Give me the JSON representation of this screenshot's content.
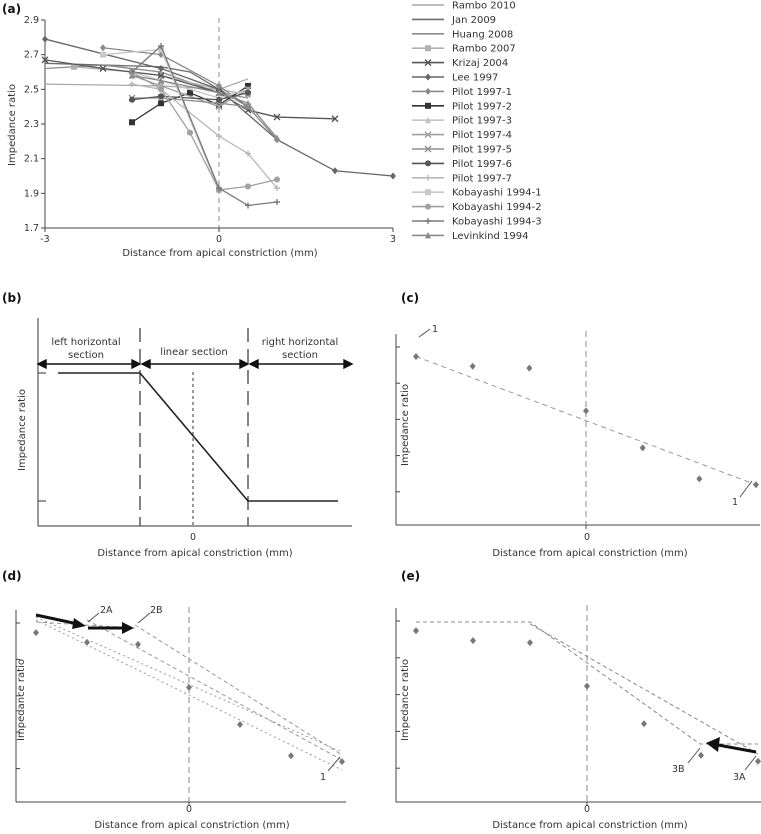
{
  "chart_data": [
    {
      "id": "a",
      "type": "line",
      "panel_label": "(a)",
      "xlabel": "Distance from apical constriction (mm)",
      "ylabel": "Impedance ratio",
      "xlim": [
        -3,
        3
      ],
      "ylim": [
        1.7,
        2.9
      ],
      "x_ticks": [
        -3,
        0,
        3
      ],
      "x_tick_labels": [
        "-3",
        "0",
        "3"
      ],
      "y_ticks": [
        1.7,
        1.9,
        2.1,
        2.3,
        2.5,
        2.7,
        2.9
      ],
      "y_tick_labels": [
        "1.7",
        "1.9",
        "2.1",
        "2.3",
        "2.5",
        "2.7",
        "2.9"
      ],
      "reference_line_x": 0,
      "legend_position": "right",
      "series": [
        {
          "name": "Rambo 2010",
          "color": "#a8a8a8",
          "marker": "none",
          "x": [
            -3,
            -1,
            0,
            0.5
          ],
          "y": [
            2.53,
            2.52,
            2.5,
            2.56
          ]
        },
        {
          "name": "Jan 2009",
          "color": "#6e6e6e",
          "marker": "none",
          "x": [
            -3,
            -1,
            -0.5,
            0,
            0.5
          ],
          "y": [
            2.65,
            2.63,
            2.6,
            2.5,
            2.4
          ]
        },
        {
          "name": "Huang 2008",
          "color": "#8c8c8c",
          "marker": "none",
          "x": [
            -3,
            -2,
            -1,
            0,
            0.5
          ],
          "y": [
            2.62,
            2.64,
            2.6,
            2.48,
            2.45
          ]
        },
        {
          "name": "Rambo 2007",
          "color": "#b0b0b0",
          "marker": "square",
          "x": [
            -2.5,
            -1.5,
            -1,
            0,
            0.5
          ],
          "y": [
            2.63,
            2.6,
            2.58,
            2.5,
            2.47
          ]
        },
        {
          "name": "Krizaj 2004",
          "color": "#555555",
          "marker": "x",
          "x": [
            -3,
            -2,
            -1,
            0,
            0.5,
            1,
            2
          ],
          "y": [
            2.67,
            2.62,
            2.58,
            2.48,
            2.38,
            2.34,
            2.33
          ]
        },
        {
          "name": "Lee 1997",
          "color": "#666666",
          "marker": "diamond",
          "x": [
            -3,
            -1,
            0,
            1,
            2,
            3
          ],
          "y": [
            2.79,
            2.62,
            2.5,
            2.21,
            2.03,
            2.0
          ]
        },
        {
          "name": "Pilot 1997-1",
          "color": "#8a8a8a",
          "marker": "diamond",
          "x": [
            -2,
            -1,
            0,
            0.5,
            1
          ],
          "y": [
            2.74,
            2.7,
            2.52,
            2.4,
            2.21
          ]
        },
        {
          "name": "Pilot 1997-2",
          "color": "#333333",
          "marker": "square",
          "x": [
            -1.5,
            -1,
            -0.5,
            0,
            0.5
          ],
          "y": [
            2.31,
            2.42,
            2.48,
            2.41,
            2.52
          ]
        },
        {
          "name": "Pilot 1997-3",
          "color": "#c4c4c4",
          "marker": "triangle",
          "x": [
            -1.5,
            -1,
            0,
            0.5
          ],
          "y": [
            2.6,
            2.55,
            2.45,
            2.5
          ]
        },
        {
          "name": "Pilot 1997-4",
          "color": "#a0a0a0",
          "marker": "x",
          "x": [
            -1.5,
            -1,
            0,
            0.5
          ],
          "y": [
            2.58,
            2.52,
            2.4,
            2.5
          ]
        },
        {
          "name": "Pilot 1997-5",
          "color": "#909090",
          "marker": "x",
          "x": [
            -1.5,
            -1,
            0,
            0.5
          ],
          "y": [
            2.45,
            2.45,
            2.42,
            2.4
          ]
        },
        {
          "name": "Pilot 1997-6",
          "color": "#555555",
          "marker": "circle",
          "x": [
            -1.5,
            -1,
            0,
            0.5
          ],
          "y": [
            2.44,
            2.46,
            2.44,
            2.48
          ]
        },
        {
          "name": "Pilot 1997-7",
          "color": "#b8b8b8",
          "marker": "plus",
          "x": [
            -1.5,
            -1,
            0,
            0.5,
            1
          ],
          "y": [
            2.53,
            2.5,
            2.23,
            2.13,
            1.93
          ]
        },
        {
          "name": "Kobayashi 1994-1",
          "color": "#c8c8c8",
          "marker": "square",
          "x": [
            -2,
            -1,
            0
          ],
          "y": [
            2.7,
            2.73,
            1.92
          ]
        },
        {
          "name": "Kobayashi 1994-2",
          "color": "#a0a0a0",
          "marker": "circle",
          "x": [
            -1.5,
            -1,
            -0.5,
            0,
            0.5,
            1
          ],
          "y": [
            2.6,
            2.5,
            2.25,
            1.92,
            1.94,
            1.98
          ]
        },
        {
          "name": "Kobayashi 1994-3",
          "color": "#7a7a7a",
          "marker": "plus",
          "x": [
            -1.5,
            -1,
            0,
            0.5,
            1
          ],
          "y": [
            2.6,
            2.75,
            1.93,
            1.83,
            1.85
          ]
        },
        {
          "name": "Levinkind 1994",
          "color": "#8a8a8a",
          "marker": "triangle",
          "x": [
            -1.5,
            -1,
            0,
            0.5,
            1
          ],
          "y": [
            2.58,
            2.55,
            2.48,
            2.42,
            2.22
          ]
        }
      ]
    },
    {
      "id": "b",
      "type": "diagram",
      "panel_label": "(b)",
      "xlabel": "Distance from apical constriction (mm)",
      "ylabel": "Impedance ratio",
      "x_tick_labels": [
        "0"
      ],
      "section_labels": {
        "left": [
          "left horizontal",
          "section"
        ],
        "middle": [
          "linear section"
        ],
        "right": [
          "right horizontal",
          "section"
        ]
      }
    },
    {
      "id": "c",
      "type": "scatter",
      "panel_label": "(c)",
      "xlabel": "Distance from apical constriction (mm)",
      "ylabel": "Impedance ratio",
      "x_tick_labels": [
        "0"
      ],
      "points_x": [
        -3,
        -2,
        -1,
        0,
        1,
        2,
        3
      ],
      "points_y": [
        2.79,
        2.74,
        2.73,
        2.51,
        2.32,
        2.16,
        2.13
      ],
      "xlim": [
        -3,
        3
      ],
      "ylim": [
        2.0,
        2.88
      ],
      "fit_line": {
        "x": [
          -3,
          3
        ],
        "y": [
          2.79,
          2.13
        ]
      },
      "annotations": [
        "1",
        "1"
      ]
    },
    {
      "id": "d",
      "type": "scatter",
      "panel_label": "(d)",
      "xlabel": "Distance from apical constriction (mm)",
      "ylabel": "Impedance ratio",
      "x_tick_labels": [
        "0"
      ],
      "points_x": [
        -3,
        -2,
        -1,
        0,
        1,
        2,
        3
      ],
      "points_y": [
        2.79,
        2.74,
        2.73,
        2.51,
        2.32,
        2.16,
        2.13
      ],
      "xlim": [
        -3,
        3
      ],
      "ylim": [
        2.0,
        2.88
      ],
      "annotations": [
        "2A",
        "2B",
        "1"
      ]
    },
    {
      "id": "e",
      "type": "scatter",
      "panel_label": "(e)",
      "xlabel": "Distance from apical constriction (mm)",
      "ylabel": "Impedance ratio",
      "x_tick_labels": [
        "0"
      ],
      "points_x": [
        -3,
        -2,
        -1,
        0,
        1,
        2,
        3
      ],
      "points_y": [
        2.79,
        2.74,
        2.73,
        2.51,
        2.32,
        2.16,
        2.13
      ],
      "xlim": [
        -3,
        3
      ],
      "ylim": [
        2.0,
        2.88
      ],
      "annotations": [
        "3B",
        "3A"
      ]
    }
  ]
}
